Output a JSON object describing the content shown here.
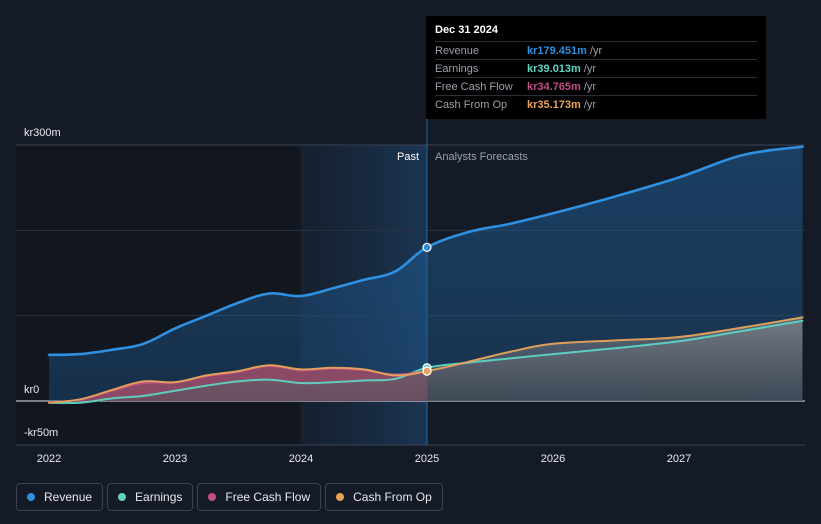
{
  "chart_data": {
    "type": "area",
    "title": "",
    "xlabel": "",
    "ylabel": "",
    "ylim": [
      -50,
      300
    ],
    "y_ticks": [
      {
        "value": 300,
        "label": "kr300m"
      },
      {
        "value": 0,
        "label": "kr0"
      },
      {
        "value": -50,
        "label": "-kr50m"
      }
    ],
    "x_ticks": [
      {
        "value": 2022,
        "label": "2022"
      },
      {
        "value": 2023,
        "label": "2023"
      },
      {
        "value": 2024,
        "label": "2024"
      },
      {
        "value": 2025,
        "label": "2025"
      },
      {
        "value": 2026,
        "label": "2026"
      },
      {
        "value": 2027,
        "label": "2027"
      }
    ],
    "xlim": [
      2021.75,
      2028.0
    ],
    "divider_x": 2025.0,
    "highlight_start_x": 2024.0,
    "past_label": "Past",
    "forecast_label": "Analysts Forecasts",
    "series": [
      {
        "name": "Revenue",
        "color": "#2f8fe0",
        "points": [
          [
            2022.0,
            54
          ],
          [
            2022.25,
            55
          ],
          [
            2022.5,
            60
          ],
          [
            2022.75,
            67
          ],
          [
            2023.0,
            85
          ],
          [
            2023.25,
            100
          ],
          [
            2023.5,
            115
          ],
          [
            2023.75,
            126
          ],
          [
            2024.0,
            123
          ],
          [
            2024.25,
            132
          ],
          [
            2024.5,
            142
          ],
          [
            2024.75,
            152
          ],
          [
            2025.0,
            180
          ],
          [
            2025.33,
            198
          ],
          [
            2025.67,
            208
          ],
          [
            2026.0,
            220
          ],
          [
            2026.5,
            240
          ],
          [
            2027.0,
            262
          ],
          [
            2027.5,
            288
          ],
          [
            2027.98,
            298
          ]
        ]
      },
      {
        "name": "Earnings",
        "color": "#5fd3c4",
        "points": [
          [
            2022.0,
            -2
          ],
          [
            2022.25,
            -2
          ],
          [
            2022.5,
            3
          ],
          [
            2022.75,
            6
          ],
          [
            2023.0,
            12
          ],
          [
            2023.25,
            18
          ],
          [
            2023.5,
            23
          ],
          [
            2023.75,
            25
          ],
          [
            2024.0,
            21
          ],
          [
            2024.25,
            22
          ],
          [
            2024.5,
            24
          ],
          [
            2024.75,
            26
          ],
          [
            2025.0,
            39
          ],
          [
            2025.33,
            45
          ],
          [
            2025.67,
            50
          ],
          [
            2026.0,
            55
          ],
          [
            2026.5,
            62
          ],
          [
            2027.0,
            70
          ],
          [
            2027.5,
            82
          ],
          [
            2027.98,
            94
          ]
        ]
      },
      {
        "name": "Free Cash Flow",
        "color": "#c04f83",
        "points": [
          [
            2022.0,
            -2
          ],
          [
            2022.25,
            2
          ],
          [
            2022.5,
            12
          ],
          [
            2022.75,
            21
          ],
          [
            2023.0,
            22
          ],
          [
            2023.25,
            29
          ],
          [
            2023.5,
            34
          ],
          [
            2023.75,
            41
          ],
          [
            2024.0,
            36
          ],
          [
            2024.25,
            38
          ],
          [
            2024.5,
            36
          ],
          [
            2024.75,
            31
          ],
          [
            2025.0,
            35
          ]
        ]
      },
      {
        "name": "Cash From Op",
        "color": "#e8a35a",
        "points": [
          [
            2022.0,
            -2
          ],
          [
            2022.25,
            2
          ],
          [
            2022.5,
            13
          ],
          [
            2022.75,
            23
          ],
          [
            2023.0,
            22
          ],
          [
            2023.25,
            30
          ],
          [
            2023.5,
            35
          ],
          [
            2023.75,
            42
          ],
          [
            2024.0,
            37
          ],
          [
            2024.25,
            39
          ],
          [
            2024.5,
            37
          ],
          [
            2024.75,
            30
          ],
          [
            2025.0,
            35
          ],
          [
            2025.33,
            46
          ],
          [
            2025.67,
            58
          ],
          [
            2026.0,
            67
          ],
          [
            2026.5,
            71
          ],
          [
            2027.0,
            75
          ],
          [
            2027.5,
            86
          ],
          [
            2027.98,
            98
          ]
        ]
      }
    ],
    "highlight_x": 2025.0
  },
  "tooltip": {
    "date": "Dec 31 2024",
    "rows": [
      {
        "name": "Revenue",
        "value": "kr179.451m",
        "unit": "/yr",
        "color": "#2f8fe0"
      },
      {
        "name": "Earnings",
        "value": "kr39.013m",
        "unit": "/yr",
        "color": "#5fd3c4"
      },
      {
        "name": "Free Cash Flow",
        "value": "kr34.765m",
        "unit": "/yr",
        "color": "#c04f83"
      },
      {
        "name": "Cash From Op",
        "value": "kr35.173m",
        "unit": "/yr",
        "color": "#e8a35a"
      }
    ]
  },
  "legend": [
    {
      "label": "Revenue",
      "color": "#2f8fe0"
    },
    {
      "label": "Earnings",
      "color": "#5fd3c4"
    },
    {
      "label": "Free Cash Flow",
      "color": "#c04f83"
    },
    {
      "label": "Cash From Op",
      "color": "#e8a35a"
    }
  ]
}
